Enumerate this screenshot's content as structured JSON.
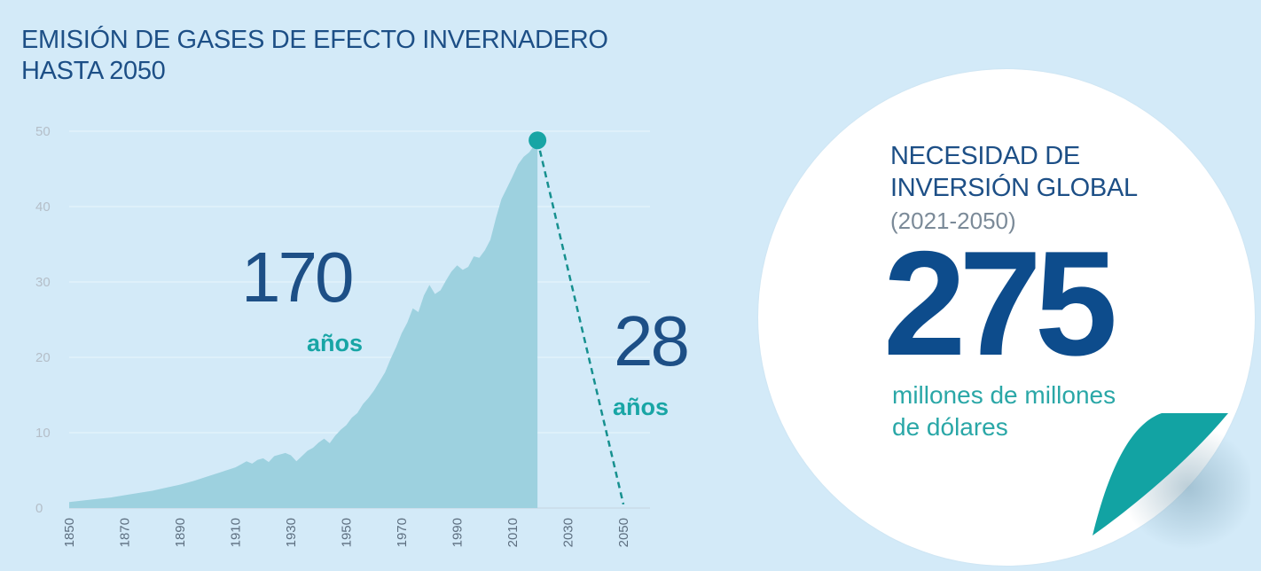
{
  "header": {
    "title_line1": "EMISIÓN DE GASES DE EFECTO INVERNADERO",
    "title_line2": "HASTA 2050"
  },
  "annotations": {
    "span_past_value": "170",
    "span_past_unit": "años",
    "span_future_value": "28",
    "span_future_unit": "años"
  },
  "investment": {
    "label_line1": "NECESIDAD DE",
    "label_line2": "INVERSIÓN GLOBAL",
    "period": "(2021-2050)",
    "amount": "275",
    "unit_line1": "millones de millones",
    "unit_line2": "de dólares"
  },
  "colors": {
    "background": "#d3eaf8",
    "area": "#9dd1df",
    "accent_teal": "#18a5a5",
    "title_blue": "#1d4f86",
    "number_blue": "#0d4c8c"
  },
  "chart_data": {
    "type": "area",
    "title": "EMISIÓN DE GASES DE EFECTO INVERNADERO HASTA 2050",
    "xlabel": "",
    "ylabel": "",
    "xlim": [
      1850,
      2055
    ],
    "ylim": [
      0,
      50
    ],
    "x_ticks": [
      1850,
      1870,
      1890,
      1910,
      1930,
      1950,
      1970,
      1990,
      2010,
      2030,
      2050
    ],
    "y_ticks": [
      0,
      10,
      20,
      30,
      40,
      50
    ],
    "grid": true,
    "series": [
      {
        "x": [
          1850,
          1855,
          1860,
          1865,
          1870,
          1875,
          1880,
          1885,
          1890,
          1895,
          1900,
          1905,
          1910,
          1912,
          1914,
          1916,
          1918,
          1920,
          1922,
          1924,
          1926,
          1928,
          1930,
          1932,
          1934,
          1936,
          1938,
          1940,
          1942,
          1944,
          1946,
          1948,
          1950,
          1952,
          1954,
          1956,
          1958,
          1960,
          1962,
          1964,
          1966,
          1968,
          1970,
          1972,
          1974,
          1976,
          1978,
          1980,
          1982,
          1984,
          1986,
          1988,
          1990,
          1992,
          1994,
          1996,
          1998,
          2000,
          2002,
          2004,
          2006,
          2008,
          2010,
          2012,
          2014,
          2016,
          2018,
          2019
        ],
        "values": [
          0.8,
          1.0,
          1.2,
          1.4,
          1.7,
          2.0,
          2.3,
          2.7,
          3.1,
          3.6,
          4.2,
          4.8,
          5.4,
          5.8,
          6.2,
          5.9,
          6.4,
          6.6,
          6.1,
          6.9,
          7.1,
          7.3,
          7.0,
          6.2,
          6.9,
          7.6,
          8.0,
          8.7,
          9.2,
          8.6,
          9.6,
          10.4,
          11.0,
          12.0,
          12.6,
          13.8,
          14.6,
          15.6,
          16.8,
          18.0,
          19.8,
          21.4,
          23.2,
          24.6,
          26.5,
          26.0,
          28.2,
          29.6,
          28.4,
          28.9,
          30.2,
          31.4,
          32.2,
          31.6,
          32.0,
          33.4,
          33.2,
          34.2,
          35.6,
          38.5,
          41.0,
          42.5,
          44.0,
          45.6,
          46.6,
          47.2,
          48.2,
          48.8
        ]
      },
      {
        "name": "",
        "x": [
          2019,
          2050
        ],
        "values": [
          48.8,
          0.5
        ]
      }
    ],
    "annotations": [
      "170 años",
      "28 años"
    ]
  }
}
